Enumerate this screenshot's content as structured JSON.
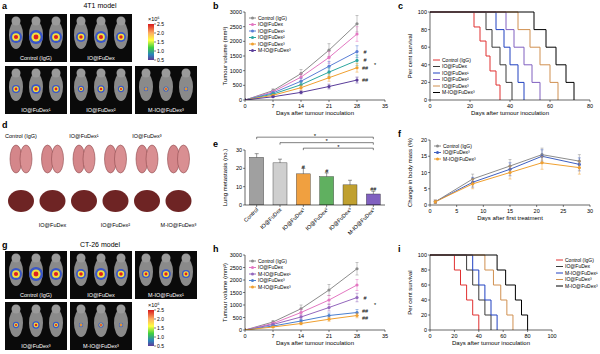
{
  "image_panels": [
    {
      "panel_label": "a",
      "title": "4T1 model",
      "groups": [
        "Control (IgG)",
        "IO@FuDex",
        "IO@FuDex¹",
        "IO@FuDex²",
        "M-IO@FuDex³"
      ],
      "colorbar_label": "×10⁶",
      "colorbar_range": [
        0.5,
        2.5
      ],
      "colorbar_ticks": [
        2.5,
        {
          "value": 2,
          "label": "2.0"
        },
        1.5,
        {
          "value": 1,
          "label": "1.0"
        },
        0.5
      ]
    },
    {
      "panel_label": "d",
      "groups": [
        "Control (IgG)",
        "IO@FuDex",
        "IO@FuDex¹",
        "IO@FuDex²",
        "IO@FuDex³",
        "M-IO@FuDex³"
      ]
    },
    {
      "panel_label": "g",
      "title": "CT-26 model",
      "groups": [
        "Control (IgG)",
        "IO@FuDex",
        "M-IO@FuDex¹",
        "IO@FuDex³",
        "M-IO@FuDex³"
      ],
      "colorbar_label": "×10⁶",
      "colorbar_range": [
        0.5,
        2.5
      ],
      "colorbar_ticks": [
        2.5,
        {
          "value": 2,
          "label": "2.0"
        },
        1.5,
        {
          "value": 1,
          "label": "1.0"
        },
        0.5
      ]
    }
  ],
  "chart_data": [
    {
      "panel_label": "b",
      "type": "line",
      "marker": "circle",
      "legend": "upper left",
      "x_label": "Days after tumour inoculation",
      "y_label": "Tumour volume (mm³)",
      "x": [
        0,
        7,
        14,
        21,
        28
      ],
      "xlim": [
        0,
        35
      ],
      "xticks": [
        0,
        7,
        14,
        21,
        28,
        35
      ],
      "ylim": [
        0,
        3000
      ],
      "yticks": [
        0,
        500,
        1000,
        1500,
        2000,
        2500,
        3000
      ],
      "series": [
        {
          "name": "Control (IgG)",
          "color": "#8c8c8c",
          "values": [
            0,
            320,
            900,
            1700,
            2600
          ],
          "errors": [
            0,
            60,
            140,
            220,
            280
          ]
        },
        {
          "name": "IO@FuDex",
          "color": "#e377c2",
          "values": [
            0,
            280,
            780,
            1450,
            2250
          ],
          "errors": [
            0,
            50,
            120,
            200,
            250
          ]
        },
        {
          "name": "IO@FuDex¹",
          "color": "#5b7fd6",
          "values": [
            0,
            240,
            640,
            1150,
            1650
          ],
          "errors": [
            0,
            40,
            100,
            160,
            200
          ]
        },
        {
          "name": "IO@FuDex²",
          "color": "#2ca7a0",
          "values": [
            0,
            200,
            520,
            950,
            1350
          ],
          "errors": [
            0,
            40,
            90,
            140,
            180
          ]
        },
        {
          "name": "IO@FuDex³",
          "color": "#f0a030",
          "values": [
            0,
            160,
            420,
            760,
            1100
          ],
          "errors": [
            0,
            30,
            80,
            120,
            150
          ]
        },
        {
          "name": "M-IO@FuDex³",
          "color": "#5a3d9a",
          "values": [
            0,
            110,
            260,
            460,
            680
          ],
          "errors": [
            0,
            20,
            50,
            80,
            100
          ]
        }
      ],
      "annotations": [
        {
          "text": "#",
          "x": 30,
          "y": 1650
        },
        {
          "text": "#",
          "x": 30,
          "y": 1350
        },
        {
          "text": "*",
          "x": 32.5,
          "y": 1200
        },
        {
          "text": "##",
          "x": 30,
          "y": 1100
        },
        {
          "text": "##",
          "x": 30,
          "y": 680
        }
      ]
    },
    {
      "panel_label": "c",
      "type": "step",
      "legend": "lower left",
      "x_label": "Days after tumour inoculation",
      "y_label": "Per cent survival",
      "xlim": [
        0,
        80
      ],
      "xticks": [
        0,
        20,
        40,
        60,
        80
      ],
      "ylim": [
        0,
        100
      ],
      "yticks": [
        0,
        20,
        40,
        60,
        80,
        100
      ],
      "series": [
        {
          "name": "Control (IgG)",
          "color": "#e03030",
          "x": [
            0,
            22,
            25,
            28,
            30,
            33,
            35
          ],
          "values": [
            100,
            83,
            67,
            50,
            33,
            17,
            0
          ]
        },
        {
          "name": "IO@FuDex",
          "color": "#3a3a3a",
          "x": [
            0,
            28,
            31,
            35,
            38,
            41
          ],
          "values": [
            100,
            80,
            60,
            40,
            20,
            0
          ]
        },
        {
          "name": "IO@FuDex¹",
          "color": "#2040c0",
          "x": [
            0,
            33,
            37,
            40,
            44,
            47
          ],
          "values": [
            100,
            80,
            60,
            40,
            20,
            0
          ]
        },
        {
          "name": "IO@FuDex²",
          "color": "#8060c0",
          "x": [
            0,
            38,
            42,
            47,
            51,
            55
          ],
          "values": [
            100,
            80,
            60,
            40,
            20,
            0
          ]
        },
        {
          "name": "IO@FuDex³",
          "color": "#d09050",
          "x": [
            0,
            44,
            50,
            55,
            60,
            64
          ],
          "values": [
            100,
            80,
            60,
            40,
            20,
            0
          ]
        },
        {
          "name": "M-IO@FuDex³",
          "color": "#000000",
          "x": [
            0,
            52,
            58,
            63,
            68,
            72
          ],
          "values": [
            100,
            80,
            60,
            40,
            20,
            0
          ]
        }
      ]
    },
    {
      "panel_label": "e",
      "type": "bar",
      "y_label": "Lung metastasis (no.)",
      "categories": [
        "Control",
        "IO@FuDex",
        "IO@FuDex¹",
        "IO@FuDex²",
        "IO@FuDex³",
        "M-IO@FuDex³"
      ],
      "values": [
        26,
        23,
        17,
        15.5,
        11,
        6
      ],
      "errors": [
        2,
        2,
        3,
        2,
        2.5,
        1.5
      ],
      "colors": [
        "#a0a0a0",
        "#cfcfcf",
        "#f0a040",
        "#60b060",
        "#c0a030",
        "#8060c0"
      ],
      "ylim": [
        0,
        30
      ],
      "yticks": [
        0,
        10,
        20,
        30
      ],
      "annotations": [
        {
          "text": "#",
          "x": 2,
          "y": 21
        },
        {
          "text": "#",
          "x": 3,
          "y": 18.5
        },
        {
          "text": "##",
          "x": 5,
          "y": 8.5
        }
      ],
      "brackets": [
        {
          "text": "*",
          "from": 0,
          "to": 5,
          "y": 37
        },
        {
          "text": "*",
          "from": 1,
          "to": 5,
          "y": 34
        },
        {
          "text": "*",
          "from": 2,
          "to": 5,
          "y": 31
        }
      ]
    },
    {
      "panel_label": "f",
      "type": "line",
      "marker": "circle",
      "legend": "upper left",
      "x_label": "Days after first treatment",
      "y_label": "Change in body mass (%)",
      "x": [
        1,
        8,
        15,
        21,
        28
      ],
      "xlim": [
        0,
        30
      ],
      "xticks": [
        0,
        5,
        10,
        15,
        20,
        25,
        30
      ],
      "ylim": [
        0,
        20
      ],
      "yticks": [
        0,
        5,
        10,
        15,
        20
      ],
      "series": [
        {
          "name": "Control (IgG)",
          "color": "#8c8c8c",
          "values": [
            1,
            8,
            12,
            15.5,
            13.5
          ],
          "errors": [
            0.5,
            1.5,
            2,
            2,
            2
          ]
        },
        {
          "name": "IO@FuDex³",
          "color": "#4060c0",
          "values": [
            1,
            7,
            11,
            15,
            12.5
          ],
          "errors": [
            0.5,
            1.5,
            2,
            2,
            2
          ]
        },
        {
          "name": "M-IO@FuDex³",
          "color": "#f0a030",
          "values": [
            1,
            6.5,
            10,
            13,
            11.5
          ],
          "errors": [
            0.5,
            1.5,
            2,
            2,
            2
          ]
        }
      ]
    },
    {
      "panel_label": "h",
      "type": "line",
      "marker": "circle",
      "legend": "upper left",
      "x_label": "Days after tumour inoculation",
      "y_label": "Tumour volume (mm³)",
      "x": [
        0,
        7,
        14,
        21,
        28
      ],
      "xlim": [
        0,
        35
      ],
      "xticks": [
        0,
        7,
        14,
        21,
        28,
        35
      ],
      "ylim": [
        0,
        3000
      ],
      "yticks": [
        0,
        500,
        1000,
        1500,
        2000,
        2500,
        3000
      ],
      "series": [
        {
          "name": "Control (IgG)",
          "color": "#8c8c8c",
          "values": [
            0,
            320,
            850,
            1600,
            2450
          ],
          "errors": [
            0,
            60,
            150,
            220,
            250
          ]
        },
        {
          "name": "IO@FuDex",
          "color": "#e377c2",
          "values": [
            0,
            260,
            700,
            1200,
            1800
          ],
          "errors": [
            0,
            50,
            120,
            180,
            220
          ]
        },
        {
          "name": "M-IO@FuDex¹",
          "color": "#9467bd",
          "values": [
            0,
            220,
            520,
            900,
            1300
          ],
          "errors": [
            0,
            40,
            90,
            140,
            170
          ]
        },
        {
          "name": "IO@FuDex³",
          "color": "#4a7fd0",
          "values": [
            0,
            160,
            360,
            580,
            700
          ],
          "errors": [
            0,
            30,
            70,
            100,
            120
          ]
        },
        {
          "name": "M-IO@FuDex³",
          "color": "#f0a030",
          "values": [
            0,
            120,
            260,
            430,
            580
          ],
          "errors": [
            0,
            20,
            50,
            80,
            90
          ]
        }
      ],
      "annotations": [
        {
          "text": "#",
          "x": 30,
          "y": 1300
        },
        {
          "text": "*",
          "x": 32.5,
          "y": 1000
        },
        {
          "text": "##",
          "x": 30,
          "y": 750
        },
        {
          "text": "##",
          "x": 30,
          "y": 480
        }
      ]
    },
    {
      "panel_label": "i",
      "type": "step",
      "legend": "right",
      "x_label": "Days after tumour inoculation",
      "y_label": "Per cent survival",
      "xlim": [
        0,
        100
      ],
      "xticks": [
        0,
        20,
        40,
        60,
        80,
        100
      ],
      "ylim": [
        0,
        100
      ],
      "yticks": [
        0,
        20,
        40,
        60,
        80,
        100
      ],
      "series": [
        {
          "name": "Control (IgG)",
          "color": "#e03030",
          "x": [
            0,
            20,
            25,
            30,
            35,
            40
          ],
          "values": [
            100,
            80,
            60,
            40,
            20,
            0
          ]
        },
        {
          "name": "IO@FuDex",
          "color": "#3a3a3a",
          "x": [
            0,
            30,
            35,
            40,
            45,
            50
          ],
          "values": [
            100,
            80,
            60,
            40,
            20,
            0
          ]
        },
        {
          "name": "M-IO@FuDex¹",
          "color": "#2040c0",
          "x": [
            0,
            35,
            40,
            45,
            50,
            55
          ],
          "values": [
            100,
            80,
            60,
            40,
            20,
            0
          ]
        },
        {
          "name": "IO@FuDex³",
          "color": "#d09050",
          "x": [
            0,
            45,
            52,
            58,
            63,
            68
          ],
          "values": [
            100,
            80,
            60,
            40,
            20,
            0
          ]
        },
        {
          "name": "M-IO@FuDex³",
          "color": "#000000",
          "x": [
            0,
            55,
            62,
            70,
            75,
            80
          ],
          "values": [
            100,
            80,
            60,
            40,
            20,
            0
          ]
        }
      ]
    }
  ]
}
